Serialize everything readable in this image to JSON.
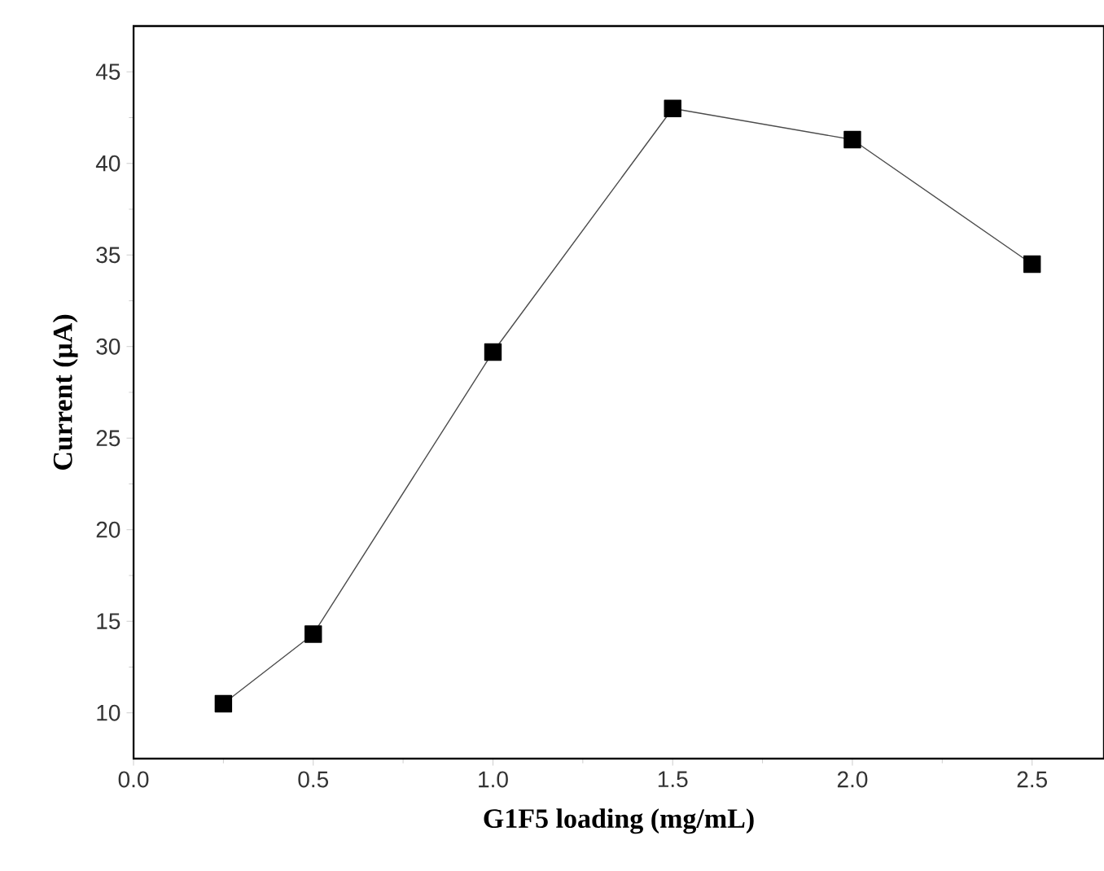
{
  "chart_data": {
    "type": "line",
    "xlabel": "G1F5 loading (mg/mL)",
    "ylabel": "Current (μA)",
    "x": [
      0.25,
      0.5,
      1.0,
      1.5,
      2.0,
      2.5
    ],
    "values": [
      10.5,
      14.3,
      29.7,
      43.0,
      41.3,
      34.5
    ],
    "color": "#000000",
    "marker": "square",
    "line_style": "solid",
    "xlim": [
      0,
      2.7
    ],
    "ylim": [
      7.5,
      47.5
    ],
    "xticks": [
      {
        "value": 0,
        "label": "0.0"
      },
      0.5,
      {
        "value": 1,
        "label": "1.0"
      },
      1.5,
      {
        "value": 2,
        "label": "2.0"
      },
      2.5
    ],
    "yticks": [
      10,
      15,
      20,
      25,
      30,
      35,
      40,
      45
    ]
  }
}
